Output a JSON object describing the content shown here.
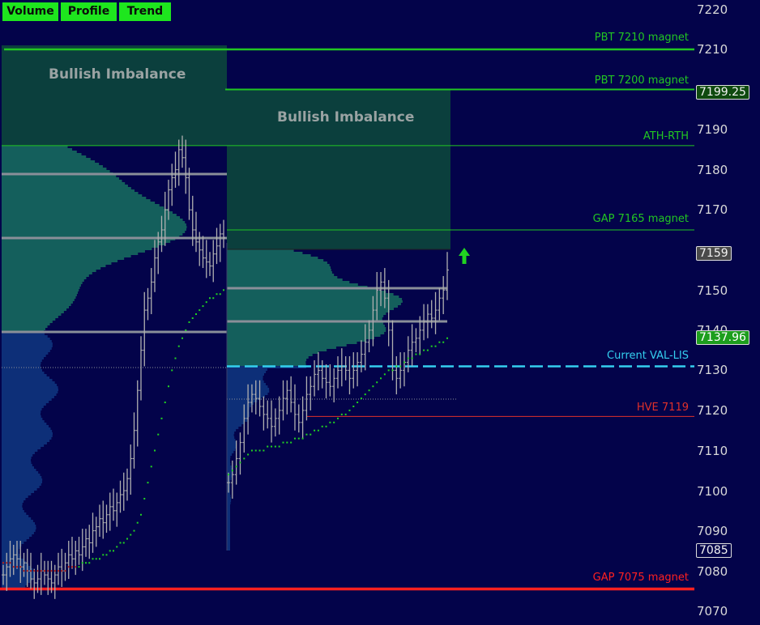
{
  "toolbar": {
    "tabs": [
      "Volume",
      "Profile",
      "Trend"
    ]
  },
  "price_axis": {
    "ticks": [
      "7220",
      "7210",
      "7190",
      "7180",
      "7170",
      "7150",
      "7140",
      "7130",
      "7120",
      "7110",
      "7100",
      "7090",
      "7080",
      "7070"
    ],
    "tick_values": [
      7220,
      7210,
      7190,
      7180,
      7170,
      7150,
      7140,
      7130,
      7120,
      7110,
      7100,
      7090,
      7080,
      7070
    ]
  },
  "price_markers": [
    {
      "label": "7199.25",
      "value": 7199.25,
      "bg": "#0f4a0f",
      "fg": "#f2f2f2"
    },
    {
      "label": "7159",
      "value": 7159,
      "bg": "#4a4a4a",
      "fg": "#f2f2f2"
    },
    {
      "label": "7137.96",
      "value": 7137.96,
      "bg": "#1d9e1d",
      "fg": "#ffffff"
    },
    {
      "label": "7085",
      "value": 7085,
      "bg": "#03034a",
      "fg": "#f2f2f2"
    }
  ],
  "levels": [
    {
      "label": "PBT 7210 magnet",
      "value": 7210,
      "color": "#22c622"
    },
    {
      "label": "PBT 7200 magnet",
      "value": 7200,
      "color": "#22c622"
    },
    {
      "label": "ATH-RTH",
      "value": 7186,
      "color": "#22c622"
    },
    {
      "label": "GAP 7165 magnet",
      "value": 7165,
      "color": "#22c622"
    },
    {
      "label": "Current VAL-LIS",
      "value": 7131,
      "color": "#34d0f0"
    },
    {
      "label": "HVE 7119",
      "value": 7118.5,
      "color": "#e0302a"
    },
    {
      "label": "GAP 7075 magnet",
      "value": 7075.5,
      "color": "#ff2020"
    }
  ],
  "zones": [
    {
      "label": "Bullish Imbalance"
    },
    {
      "label": "Bullish Imbalance"
    }
  ],
  "chart_data": {
    "type": "candlestick",
    "y_axis": {
      "min": 7068,
      "max": 7223
    },
    "sessions": [
      {
        "closes": [
          7079,
          7081,
          7083,
          7084,
          7083,
          7081,
          7082,
          7080,
          7078,
          7077,
          7078,
          7080,
          7079,
          7078,
          7077,
          7079,
          7081,
          7080,
          7082,
          7084,
          7083,
          7085,
          7084,
          7086,
          7088,
          7087,
          7090,
          7091,
          7093,
          7092,
          7094,
          7096,
          7095,
          7097,
          7099,
          7100,
          7103,
          7108,
          7115,
          7125,
          7135,
          7145,
          7148,
          7152,
          7158,
          7162,
          7165,
          7170,
          7175,
          7178,
          7180,
          7185,
          7183,
          7178,
          7170,
          7165,
          7162,
          7160,
          7158,
          7157,
          7156,
          7159,
          7161,
          7164,
          7163
        ],
        "vwap": [
          7082,
          7082,
          7082,
          7081,
          7081,
          7081,
          7080,
          7080,
          7080,
          7080,
          7080,
          7080,
          7080,
          7080,
          7080,
          7080,
          7080,
          7080,
          7080,
          7081,
          7081,
          7081,
          7081,
          7082,
          7082,
          7082,
          7083,
          7083,
          7083,
          7084,
          7084,
          7085,
          7085,
          7086,
          7087,
          7087,
          7088,
          7089,
          7090,
          7092,
          7094,
          7098,
          7102,
          7106,
          7110,
          7114,
          7118,
          7122,
          7126,
          7130,
          7133,
          7136,
          7138,
          7140,
          7142,
          7143,
          7144,
          7145,
          7146,
          7147,
          7148,
          7148,
          7149,
          7149,
          7150
        ]
      },
      {
        "closes": [
          7102,
          7104,
          7108,
          7112,
          7118,
          7122,
          7124,
          7123,
          7121,
          7119,
          7118,
          7116,
          7118,
          7120,
          7123,
          7125,
          7122,
          7119,
          7117,
          7120,
          7124,
          7126,
          7129,
          7130,
          7128,
          7127,
          7126,
          7128,
          7130,
          7131,
          7130,
          7128,
          7130,
          7132,
          7134,
          7137,
          7140,
          7145,
          7150,
          7152,
          7148,
          7140,
          7130,
          7128,
          7130,
          7132,
          7135,
          7137,
          7138,
          7140,
          7142,
          7144,
          7143,
          7145,
          7148,
          7150,
          7155
        ],
        "vwap": [
          7104,
          7105,
          7106,
          7107,
          7108,
          7109,
          7110,
          7110,
          7110,
          7110,
          7111,
          7111,
          7111,
          7111,
          7112,
          7112,
          7112,
          7113,
          7113,
          7113,
          7114,
          7114,
          7115,
          7115,
          7116,
          7116,
          7117,
          7117,
          7118,
          7119,
          7119,
          7120,
          7121,
          7122,
          7123,
          7124,
          7125,
          7126,
          7127,
          7128,
          7129,
          7130,
          7130,
          7131,
          7131,
          7132,
          7133,
          7133,
          7134,
          7134,
          7135,
          7135,
          7136,
          7136,
          7137,
          7137,
          7138
        ]
      }
    ]
  }
}
